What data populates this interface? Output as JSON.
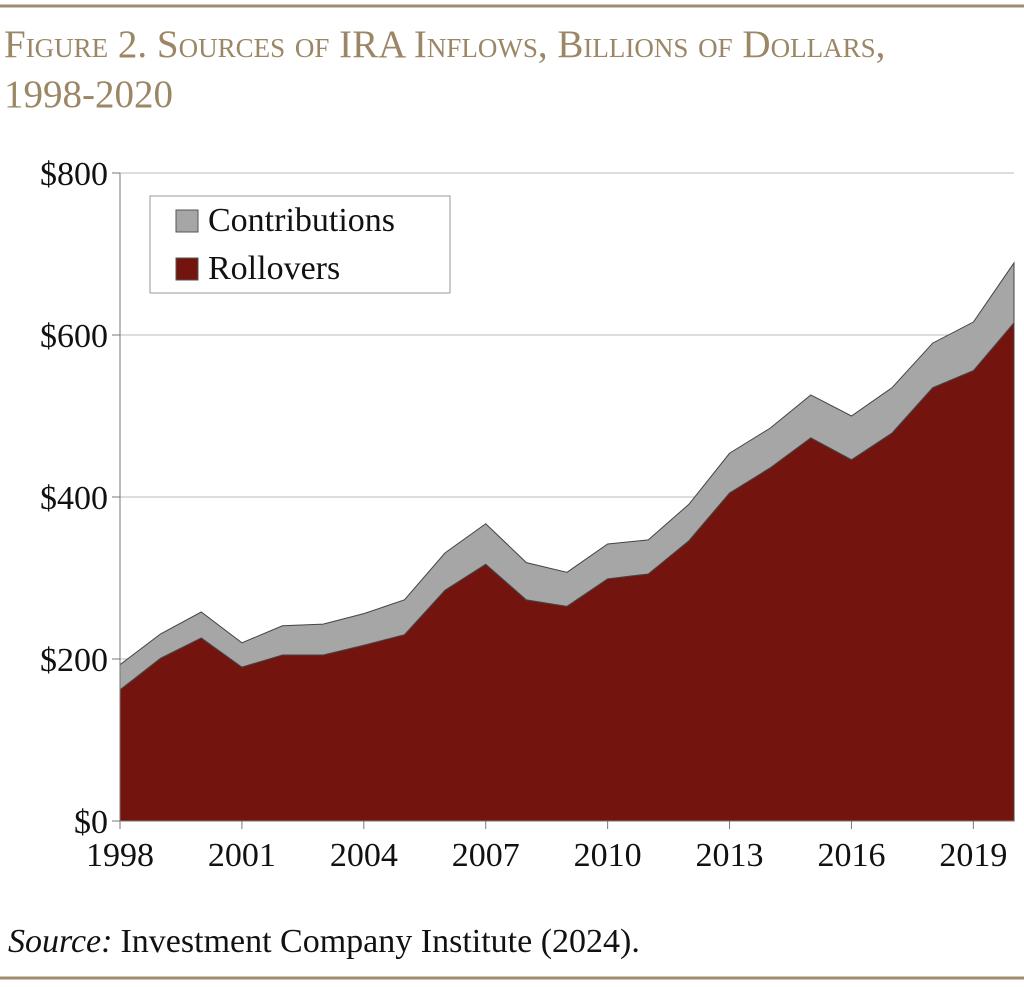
{
  "chart_data": {
    "type": "stacked_area",
    "title": "Figure 2. Sources of IRA Inflows, Billions of Dollars, 1998-2020",
    "source_label": "Source:",
    "source": "Investment Company Institute (2024).",
    "x": [
      1998,
      1999,
      2000,
      2001,
      2002,
      2003,
      2004,
      2005,
      2006,
      2007,
      2008,
      2009,
      2010,
      2011,
      2012,
      2013,
      2014,
      2015,
      2016,
      2017,
      2018,
      2019,
      2020
    ],
    "series": [
      {
        "name": "Rollovers",
        "color": "#74140f",
        "values": [
          162,
          201,
          226,
          190,
          205,
          205,
          217,
          230,
          285,
          317,
          273,
          265,
          299,
          305,
          346,
          405,
          436,
          473,
          446,
          479,
          535,
          556,
          615
        ]
      },
      {
        "name": "Contributions",
        "color": "#a6a6a6",
        "values": [
          31,
          30,
          32,
          30,
          36,
          38,
          39,
          43,
          46,
          50,
          46,
          42,
          43,
          42,
          45,
          49,
          49,
          53,
          54,
          56,
          55,
          60,
          74
        ]
      }
    ],
    "xlim": [
      1998,
      2020
    ],
    "xticks": [
      1998,
      2001,
      2004,
      2007,
      2010,
      2013,
      2016,
      2019
    ],
    "ylim": [
      0,
      800
    ],
    "yticks": [
      {
        "value": 0,
        "label": "$0"
      },
      {
        "value": 200,
        "label": "$200"
      },
      {
        "value": 400,
        "label": "$400"
      },
      {
        "value": 600,
        "label": "$600"
      },
      {
        "value": 800,
        "label": "$800"
      }
    ],
    "grid": true,
    "legend": "upper-left"
  }
}
